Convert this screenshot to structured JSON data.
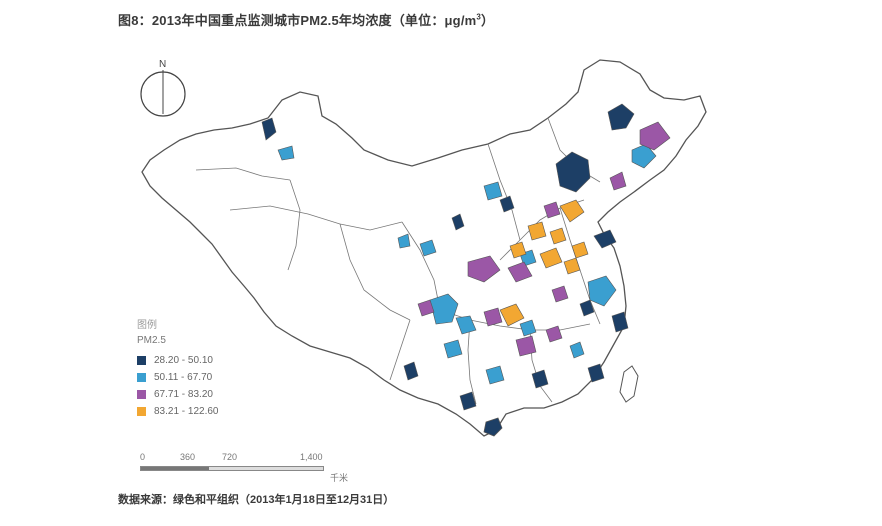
{
  "title": {
    "text": "图8：2013年中国重点监测城市PM2.5年均浓度（单位：μg/m",
    "sup": "3",
    "close": "）"
  },
  "north_label": "N",
  "legend": {
    "title": "图例",
    "subtitle": "PM2.5",
    "items": [
      {
        "label": "28.20 - 50.10",
        "color": "#1d3f66"
      },
      {
        "label": "50.11 - 67.70",
        "color": "#3a9fd0"
      },
      {
        "label": "67.71 - 83.20",
        "color": "#9b57a6"
      },
      {
        "label": "83.21 - 122.60",
        "color": "#f2a732"
      }
    ]
  },
  "scale_bar": {
    "ticks": [
      "0",
      "360",
      "720",
      "1,400"
    ],
    "unit": "千米"
  },
  "source": "数据来源：绿色和平组织（2013年1月18日至12月31日）",
  "colors": {
    "outline": "#555555",
    "land": "#ffffff"
  }
}
